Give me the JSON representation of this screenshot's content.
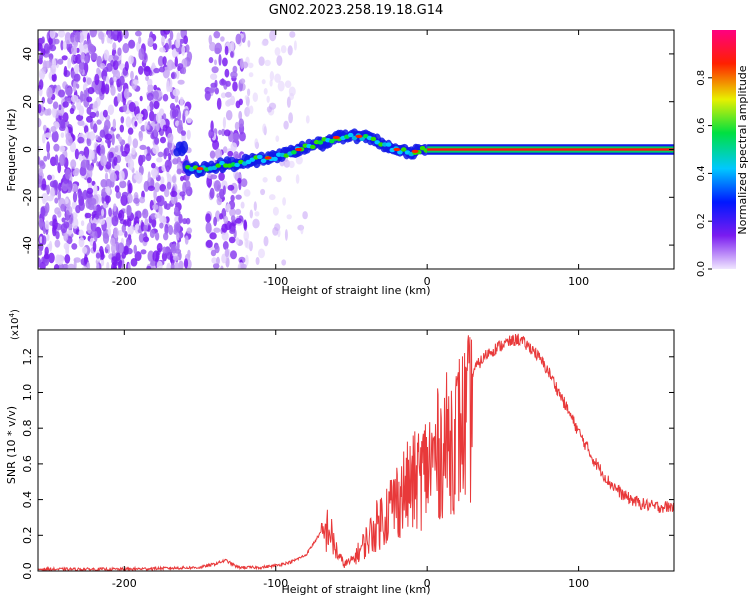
{
  "title": "GN02.2023.258.19.18.G14",
  "colors": {
    "snr_line": "#e8393a",
    "frame": "#000000",
    "background": "#ffffff"
  },
  "chart_data": [
    {
      "type": "heatmap",
      "name": "spectrogram",
      "xlabel": "Height of straight line (km)",
      "ylabel": "Frequency (Hz)",
      "xlim": [
        -257,
        163
      ],
      "ylim": [
        -50,
        50
      ],
      "xticks": [
        -200,
        -100,
        0,
        100
      ],
      "xtick_labels": [
        "-200",
        "-100",
        "0",
        "100"
      ],
      "yticks": [
        -40,
        -20,
        0,
        20,
        40
      ],
      "ytick_labels": [
        "-40",
        "-20",
        "0",
        "20",
        "40"
      ],
      "ridge": {
        "x": [
          -160,
          -150,
          -140,
          -130,
          -120,
          -110,
          -100,
          -90,
          -80,
          -70,
          -60,
          -50,
          -40,
          -30,
          -20,
          -10,
          0,
          50,
          100,
          163
        ],
        "y": [
          -8,
          -8,
          -7,
          -6,
          -5,
          -4,
          -3,
          -1,
          1,
          3,
          5,
          6,
          5,
          2,
          0,
          -1,
          0,
          0,
          0,
          0
        ]
      },
      "colorbar": {
        "label": "Normalized spectral amplitude",
        "range": [
          0.0,
          1.0
        ],
        "ticks": [
          0.0,
          0.2,
          0.4,
          0.6,
          0.8
        ],
        "tick_labels": [
          "0.0",
          "0.2",
          "0.4",
          "0.6",
          "0.8"
        ],
        "stops": [
          "#f0e6ff",
          "#7a1cf0",
          "#0018ff",
          "#00c8ff",
          "#00e040",
          "#e8f000",
          "#ff2000",
          "#ff0080"
        ]
      }
    },
    {
      "type": "line",
      "name": "snr",
      "xlabel": "Height of straight line (km)",
      "ylabel": "SNR (10 * v/v)",
      "y_scale_label": "(x10",
      "y_scale_exp": "4",
      "y_scale_close": ")",
      "xlim": [
        -257,
        163
      ],
      "ylim": [
        0,
        1.35
      ],
      "xticks": [
        -200,
        -100,
        0,
        100
      ],
      "xtick_labels": [
        "-200",
        "-100",
        "0",
        "100"
      ],
      "yticks": [
        0.0,
        0.2,
        0.4,
        0.6,
        0.8,
        1.0,
        1.2
      ],
      "ytick_labels": [
        "0.0",
        "0.2",
        "0.4",
        "0.6",
        "0.8",
        "1.0",
        "1.2"
      ],
      "series": [
        {
          "name": "SNR",
          "x": [
            -257,
            -200,
            -150,
            -140,
            -133,
            -125,
            -110,
            -100,
            -90,
            -80,
            -70,
            -65,
            -62,
            -58,
            -55,
            -50,
            -45,
            -40,
            -35,
            -30,
            -25,
            -20,
            -15,
            -10,
            -5,
            0,
            10,
            20,
            30,
            40,
            50,
            60,
            70,
            80,
            90,
            100,
            110,
            120,
            130,
            140,
            150,
            163
          ],
          "values": [
            0.01,
            0.01,
            0.02,
            0.04,
            0.06,
            0.02,
            0.02,
            0.03,
            0.05,
            0.09,
            0.22,
            0.32,
            0.2,
            0.1,
            0.05,
            0.07,
            0.14,
            0.22,
            0.3,
            0.38,
            0.45,
            0.52,
            0.58,
            0.62,
            0.68,
            0.75,
            0.88,
            1.0,
            1.12,
            1.22,
            1.27,
            1.3,
            1.24,
            1.12,
            0.95,
            0.78,
            0.62,
            0.5,
            0.42,
            0.38,
            0.36,
            0.36
          ]
        }
      ]
    }
  ]
}
